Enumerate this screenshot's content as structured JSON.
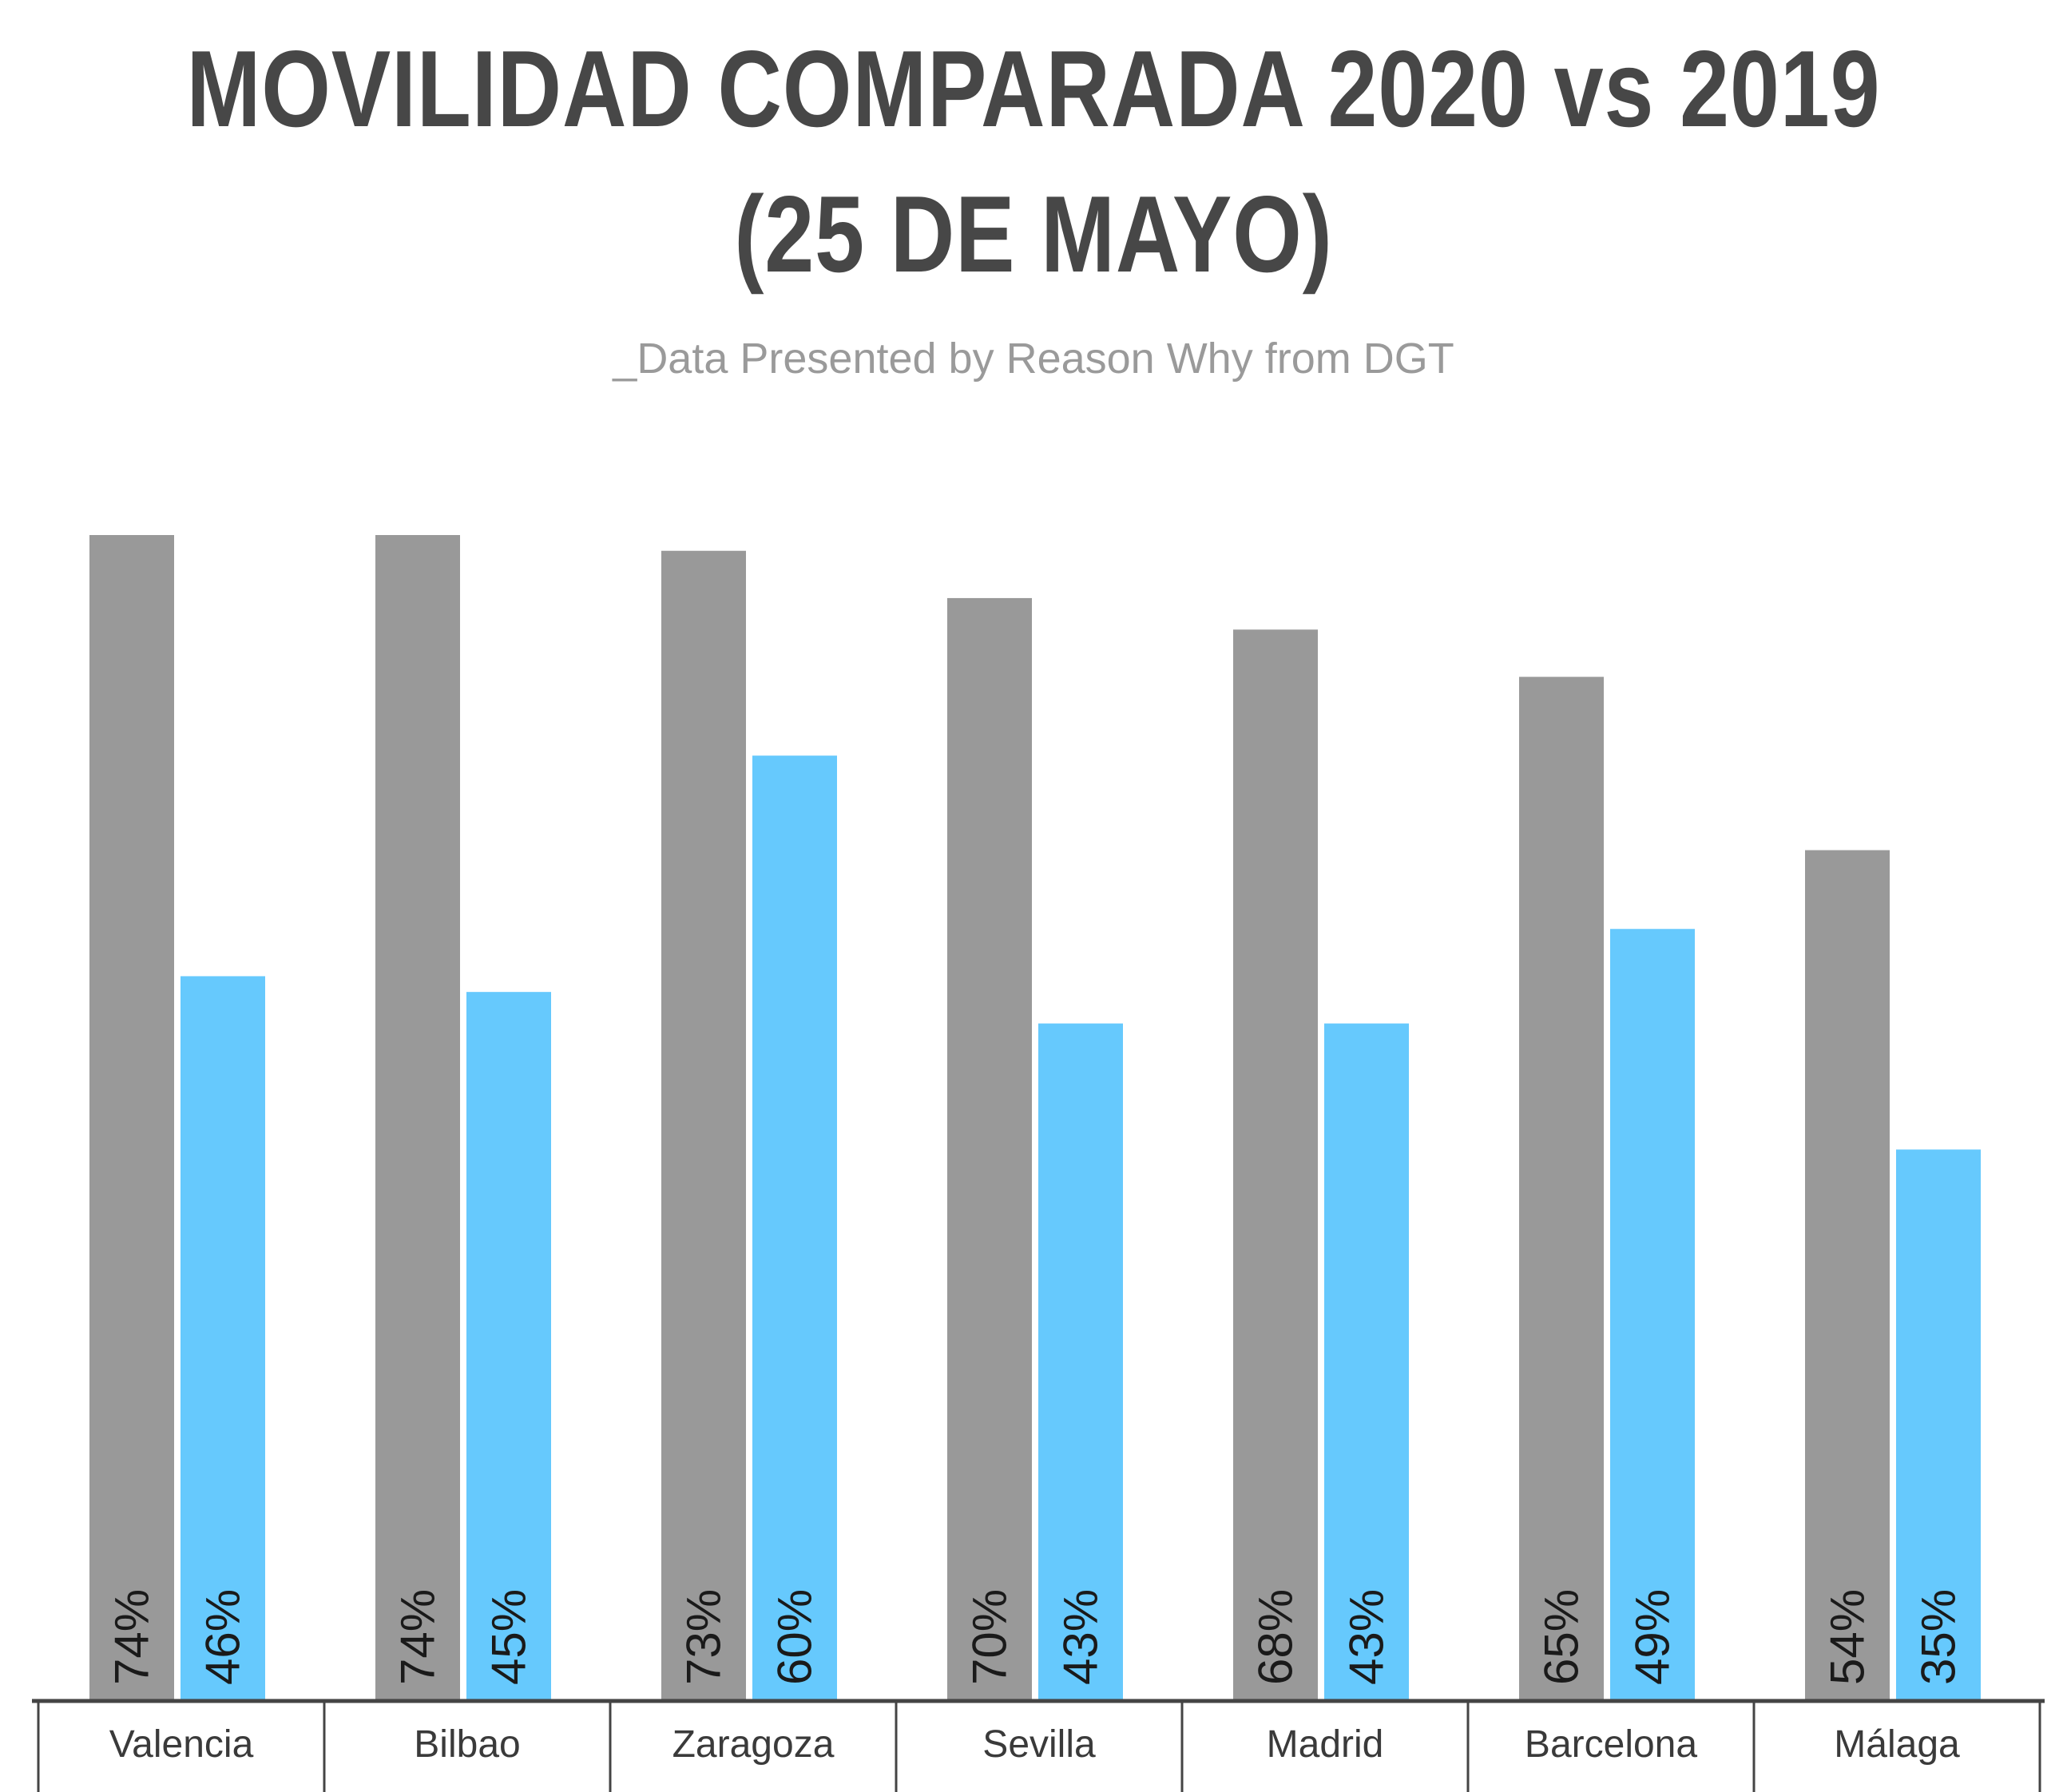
{
  "title_line1": "MOVILIDAD COMPARADA 2020 vs 2019",
  "title_line2": "(25 DE MAYO)",
  "subtitle": "_Data Presented by Reason Why from DGT",
  "colors": {
    "series_2019": "#999999",
    "series_2020": "#66c9fd",
    "axis": "#444444"
  },
  "chart_data": {
    "type": "bar",
    "title": "MOVILIDAD COMPARADA 2020 vs 2019 (25 DE MAYO)",
    "subtitle": "_Data Presented by Reason Why from DGT",
    "categories": [
      "Valencia",
      "Bilbao",
      "Zaragoza",
      "Sevilla",
      "Madrid",
      "Barcelona",
      "Málaga"
    ],
    "series": [
      {
        "values": [
          74,
          74,
          73,
          70,
          68,
          65,
          54
        ],
        "labels": [
          "74%",
          "74%",
          "73%",
          "70%",
          "68%",
          "65%",
          "54%"
        ],
        "color": "#999999"
      },
      {
        "values": [
          46,
          45,
          60,
          43,
          43,
          49,
          35
        ],
        "labels": [
          "46%",
          "45%",
          "60%",
          "43%",
          "43%",
          "49%",
          "35%"
        ],
        "color": "#66c9fd"
      }
    ],
    "ylim": [
      0,
      100
    ],
    "grid": false,
    "legend": "none"
  }
}
